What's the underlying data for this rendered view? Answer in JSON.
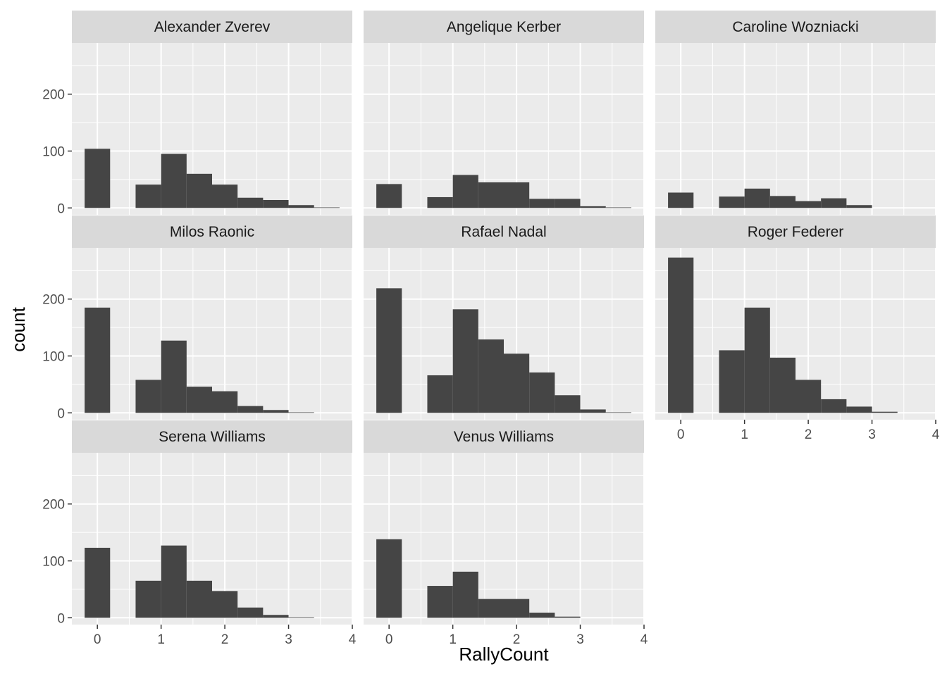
{
  "chart_data": {
    "type": "bar",
    "subtype": "faceted-histogram",
    "xlabel": "RallyCount",
    "ylabel": "count",
    "xlim": [
      -0.4,
      4.0
    ],
    "ylim": [
      -12,
      290
    ],
    "x_ticks": [
      0,
      1,
      2,
      3,
      4
    ],
    "y_ticks": [
      0,
      100,
      200
    ],
    "bin_width": 0.4,
    "bin_centers": [
      0,
      0.4,
      0.8,
      1.2,
      1.6,
      2.0,
      2.4,
      2.8,
      3.2,
      3.6
    ],
    "grid": true,
    "facet_columns": 3,
    "colors": {
      "bar": "#454545",
      "panel": "#ebebeb",
      "strip": "#d9d9d9",
      "grid": "#ffffff"
    },
    "facets": [
      {
        "name": "Alexander Zverev",
        "values": [
          104,
          0,
          41,
          95,
          60,
          41,
          18,
          14,
          5,
          1
        ]
      },
      {
        "name": "Angelique Kerber",
        "values": [
          42,
          0,
          19,
          58,
          45,
          45,
          16,
          16,
          3,
          1
        ]
      },
      {
        "name": "Caroline Wozniacki",
        "values": [
          27,
          0,
          20,
          34,
          21,
          12,
          17,
          5,
          0,
          0
        ]
      },
      {
        "name": "Milos Raonic",
        "values": [
          185,
          0,
          58,
          127,
          46,
          38,
          12,
          5,
          1,
          0
        ]
      },
      {
        "name": "Rafael Nadal",
        "values": [
          219,
          0,
          66,
          182,
          129,
          104,
          71,
          31,
          6,
          1
        ]
      },
      {
        "name": "Roger Federer",
        "values": [
          273,
          0,
          110,
          185,
          97,
          58,
          24,
          11,
          2,
          0
        ]
      },
      {
        "name": "Serena Williams",
        "values": [
          123,
          0,
          65,
          127,
          65,
          47,
          18,
          5,
          1,
          0
        ]
      },
      {
        "name": "Venus Williams",
        "values": [
          138,
          0,
          56,
          81,
          33,
          33,
          9,
          2,
          0,
          0
        ]
      }
    ]
  }
}
